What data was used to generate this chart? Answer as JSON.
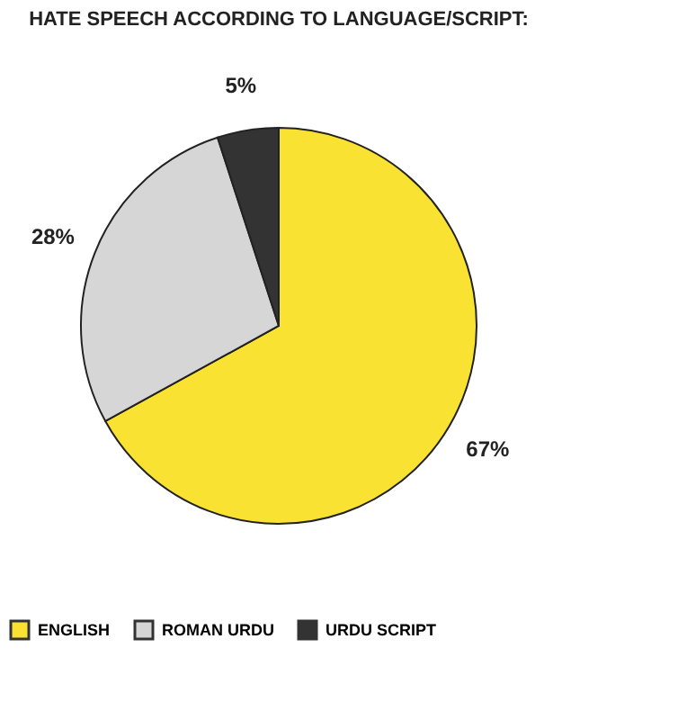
{
  "chart_data": {
    "type": "pie",
    "title": "HATE SPEECH ACCORDING TO LANGUAGE/SCRIPT:",
    "categories": [
      "ENGLISH",
      "ROMAN URDU",
      "URDU SCRIPT"
    ],
    "values": [
      67,
      28,
      5
    ],
    "colors": [
      "#fae232",
      "#d6d6d6",
      "#333333"
    ],
    "value_labels": [
      "67%",
      "28%",
      "5%"
    ],
    "legend": "bottom"
  }
}
